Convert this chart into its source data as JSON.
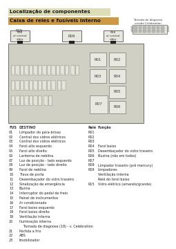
{
  "title1": "Localização de componentes",
  "title2": "Caixa de reles e fusíveis interno",
  "relay_label_top": "Tomada de diagnose\nversão Celebration",
  "fus_nums": [
    "01",
    "02",
    "03",
    "04",
    "05",
    "06",
    "07",
    "08",
    "09",
    "10",
    "11",
    "12",
    "13",
    "14",
    "15",
    "16",
    "17",
    "18",
    "19",
    "20",
    "",
    "21",
    "22",
    "23"
  ],
  "destinations": [
    "Limpador do pára-brisas",
    "Central dos vidros elétricos",
    "Central dos vidros elétricos",
    "Farol alto esquerdo",
    "Farol alto direito",
    "Lanterna de neblina",
    "Luz de posição - lado esquerdo",
    "Luz de posição - lado direito",
    "Farol de neblina",
    "Trava de porta",
    "Desembaçador do vidro traseiro",
    "Sinalização de emergência",
    "Buzina",
    "Interruptor do pedal de freio",
    "Painel de instrumentos",
    "Ar condicionado",
    "Farol baixo esquerdo",
    "Farol baixo direito",
    "Ventilação interna",
    "Iluminação interna",
    "    Tomada de diagnose (18) - v. Celebration",
    "Partida a frio",
    "ABS",
    "Imobilizador"
  ],
  "relay_entries": [
    [
      "R01",
      ""
    ],
    [
      "R02",
      ""
    ],
    [
      "R03",
      ""
    ],
    [
      "R04",
      "Farol baixo"
    ],
    [
      "R05",
      "Desembaçador do vidro traseiro"
    ],
    [
      "R06",
      "Buzina (não em todos)"
    ],
    [
      "R07",
      ""
    ],
    [
      "R08",
      "Limpador traseiro (pré mercury)"
    ],
    [
      "R09",
      "Limpadores"
    ],
    [
      "",
      "Ventilação interna"
    ],
    [
      "",
      "Relé do farol baixo"
    ],
    [
      "R15",
      "Vidro elétrico (amarelo/grande)"
    ]
  ]
}
